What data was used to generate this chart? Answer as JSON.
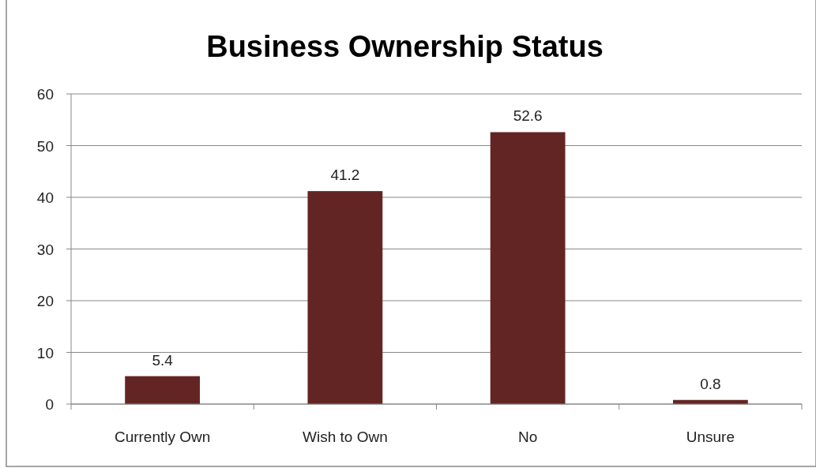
{
  "chart_data": {
    "type": "bar",
    "title": "Business Ownership Status",
    "categories": [
      "Currently Own",
      "Wish to Own",
      "No",
      "Unsure"
    ],
    "values": [
      5.4,
      41.2,
      52.6,
      0.8
    ],
    "color": "#632523",
    "ylim": [
      0,
      60
    ],
    "yticks": [
      0,
      10,
      20,
      30,
      40,
      50,
      60
    ],
    "grid": "y",
    "data_labels": true
  }
}
